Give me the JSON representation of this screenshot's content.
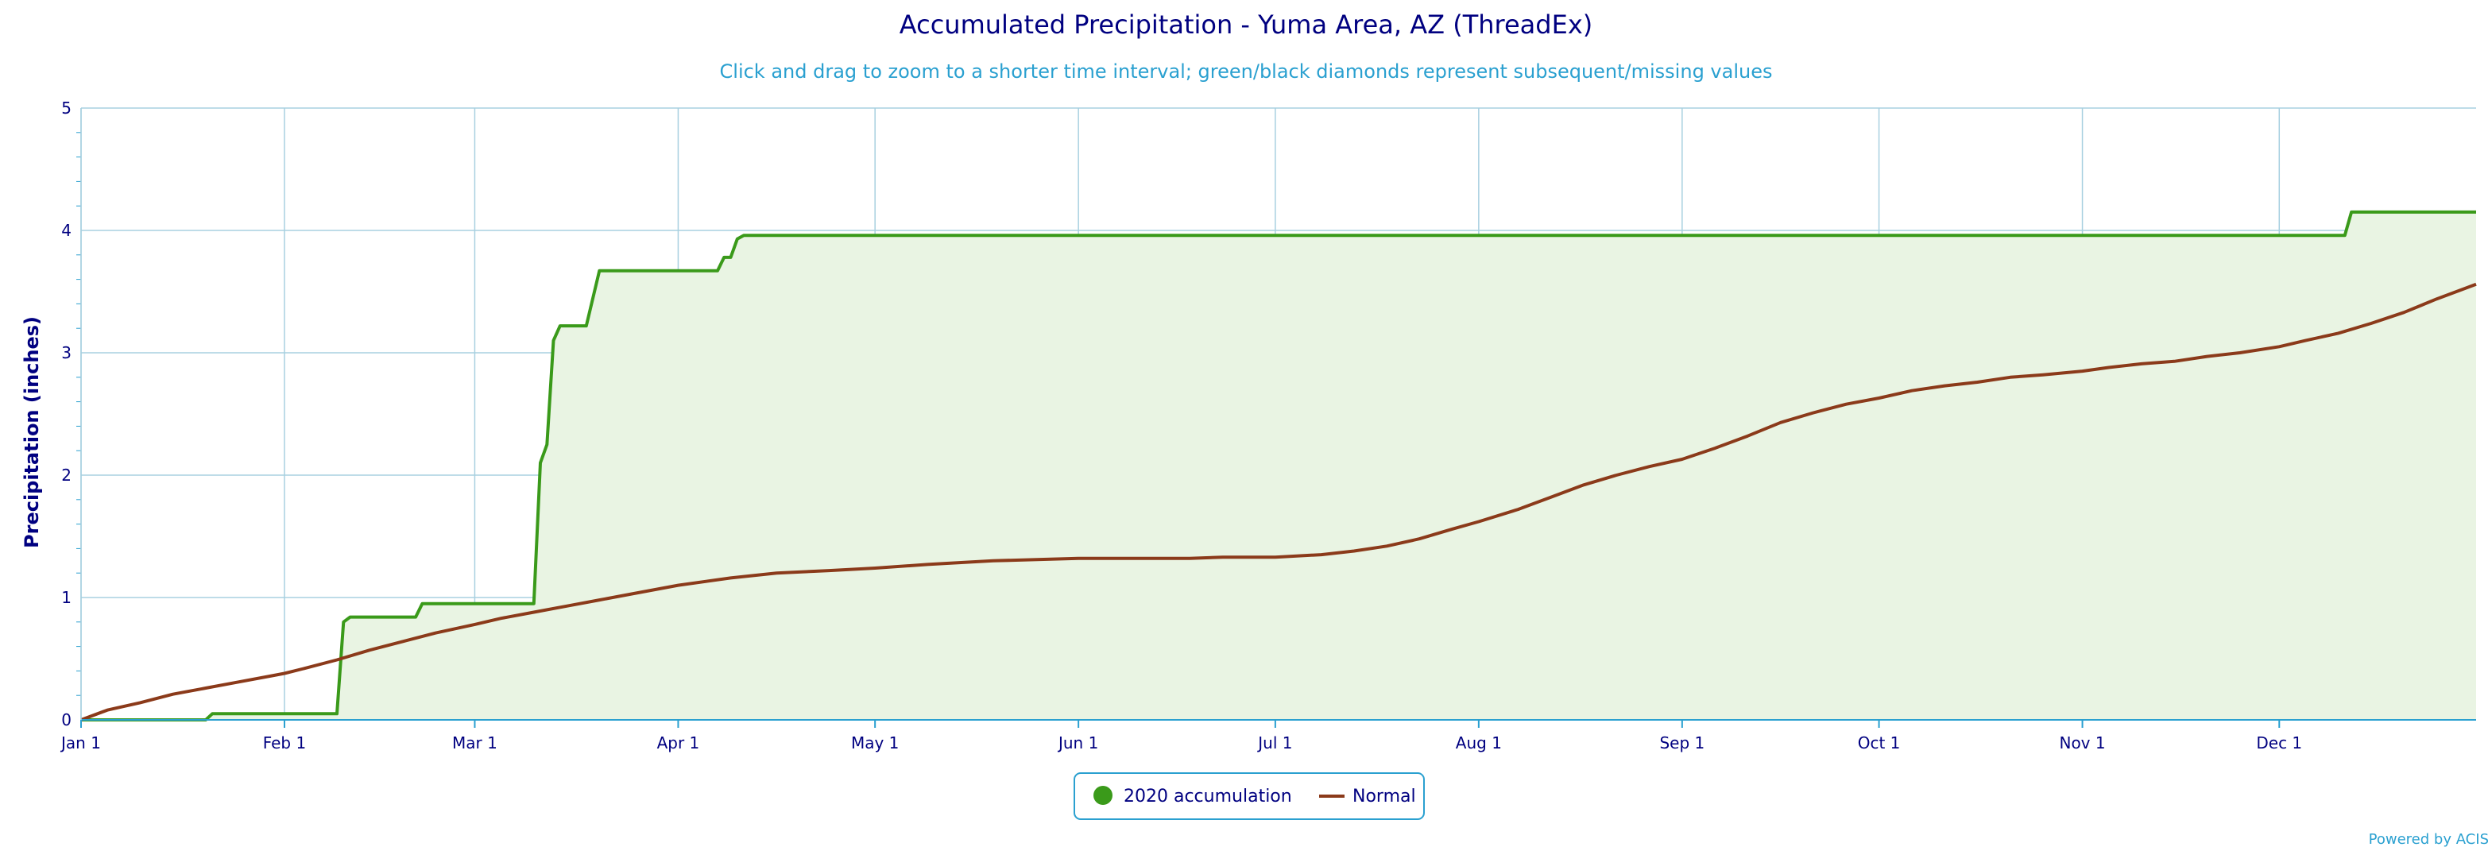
{
  "chart_data": {
    "type": "area",
    "title": "Accumulated Precipitation - Yuma Area, AZ (ThreadEx)",
    "subtitle": "Click and drag to zoom to a shorter time interval; green/black diamonds represent subsequent/missing values",
    "xlabel": "",
    "ylabel": "Precipitation (inches)",
    "ylim": [
      0,
      5
    ],
    "yticks": [
      "0",
      "1",
      "2",
      "3",
      "4",
      "5"
    ],
    "xlim": [
      1,
      366
    ],
    "xticks": [
      {
        "label": "Jan 1",
        "day": 1
      },
      {
        "label": "Feb 1",
        "day": 32
      },
      {
        "label": "Mar 1",
        "day": 61
      },
      {
        "label": "Apr 1",
        "day": 92
      },
      {
        "label": "May 1",
        "day": 122
      },
      {
        "label": "Jun 1",
        "day": 153
      },
      {
        "label": "Jul 1",
        "day": 183
      },
      {
        "label": "Aug 1",
        "day": 214
      },
      {
        "label": "Sep 1",
        "day": 245
      },
      {
        "label": "Oct 1",
        "day": 275
      },
      {
        "label": "Nov 1",
        "day": 306
      },
      {
        "label": "Dec 1",
        "day": 336
      }
    ],
    "grid": true,
    "legend_position": "bottom-center",
    "series": [
      {
        "name": "2020 accumulation",
        "type": "area-step",
        "color": "#3a9a1a",
        "fill": "#e9f4e3",
        "points": [
          [
            1,
            0
          ],
          [
            20,
            0
          ],
          [
            21,
            0.05
          ],
          [
            40,
            0.05
          ],
          [
            41,
            0.8
          ],
          [
            42,
            0.84
          ],
          [
            52,
            0.84
          ],
          [
            53,
            0.95
          ],
          [
            70,
            0.95
          ],
          [
            71,
            2.1
          ],
          [
            72,
            2.25
          ],
          [
            73,
            3.1
          ],
          [
            74,
            3.22
          ],
          [
            78,
            3.22
          ],
          [
            80,
            3.67
          ],
          [
            98,
            3.67
          ],
          [
            99,
            3.78
          ],
          [
            100,
            3.78
          ],
          [
            101,
            3.93
          ],
          [
            102,
            3.96
          ],
          [
            346,
            3.96
          ],
          [
            347,
            4.15
          ],
          [
            366,
            4.15
          ]
        ]
      },
      {
        "name": "Normal",
        "type": "line",
        "color": "#8b3a1a",
        "points": [
          [
            1,
            0
          ],
          [
            5,
            0.08
          ],
          [
            10,
            0.14
          ],
          [
            15,
            0.21
          ],
          [
            20,
            0.26
          ],
          [
            25,
            0.31
          ],
          [
            30,
            0.36
          ],
          [
            32,
            0.38
          ],
          [
            35,
            0.42
          ],
          [
            40,
            0.49
          ],
          [
            45,
            0.57
          ],
          [
            50,
            0.64
          ],
          [
            55,
            0.71
          ],
          [
            61,
            0.78
          ],
          [
            65,
            0.83
          ],
          [
            70,
            0.88
          ],
          [
            75,
            0.93
          ],
          [
            80,
            0.98
          ],
          [
            85,
            1.03
          ],
          [
            92,
            1.1
          ],
          [
            100,
            1.16
          ],
          [
            107,
            1.2
          ],
          [
            115,
            1.22
          ],
          [
            122,
            1.24
          ],
          [
            130,
            1.27
          ],
          [
            140,
            1.3
          ],
          [
            153,
            1.32
          ],
          [
            160,
            1.32
          ],
          [
            170,
            1.32
          ],
          [
            175,
            1.33
          ],
          [
            183,
            1.33
          ],
          [
            190,
            1.35
          ],
          [
            195,
            1.38
          ],
          [
            200,
            1.42
          ],
          [
            205,
            1.48
          ],
          [
            210,
            1.56
          ],
          [
            214,
            1.62
          ],
          [
            220,
            1.72
          ],
          [
            225,
            1.82
          ],
          [
            230,
            1.92
          ],
          [
            235,
            2.0
          ],
          [
            240,
            2.07
          ],
          [
            245,
            2.13
          ],
          [
            250,
            2.22
          ],
          [
            255,
            2.32
          ],
          [
            260,
            2.43
          ],
          [
            265,
            2.51
          ],
          [
            270,
            2.58
          ],
          [
            275,
            2.63
          ],
          [
            280,
            2.69
          ],
          [
            285,
            2.73
          ],
          [
            290,
            2.76
          ],
          [
            295,
            2.8
          ],
          [
            300,
            2.82
          ],
          [
            306,
            2.85
          ],
          [
            310,
            2.88
          ],
          [
            315,
            2.91
          ],
          [
            320,
            2.93
          ],
          [
            325,
            2.97
          ],
          [
            330,
            3.0
          ],
          [
            336,
            3.05
          ],
          [
            340,
            3.1
          ],
          [
            345,
            3.16
          ],
          [
            350,
            3.24
          ],
          [
            355,
            3.33
          ],
          [
            360,
            3.44
          ],
          [
            366,
            3.56
          ]
        ]
      }
    ]
  },
  "legend": {
    "items": [
      {
        "label": "2020 accumulation",
        "color": "#3a9a1a"
      },
      {
        "label": "Normal",
        "color": "#8b3a1a"
      }
    ]
  },
  "credits": {
    "text": "Powered by ACIS"
  },
  "colors": {
    "title": "#000080",
    "subtitle": "#2aa0d0",
    "grid": "#a8d0e0",
    "axis": "#2aa0d0",
    "plot_fill": "#e9f4e3"
  }
}
